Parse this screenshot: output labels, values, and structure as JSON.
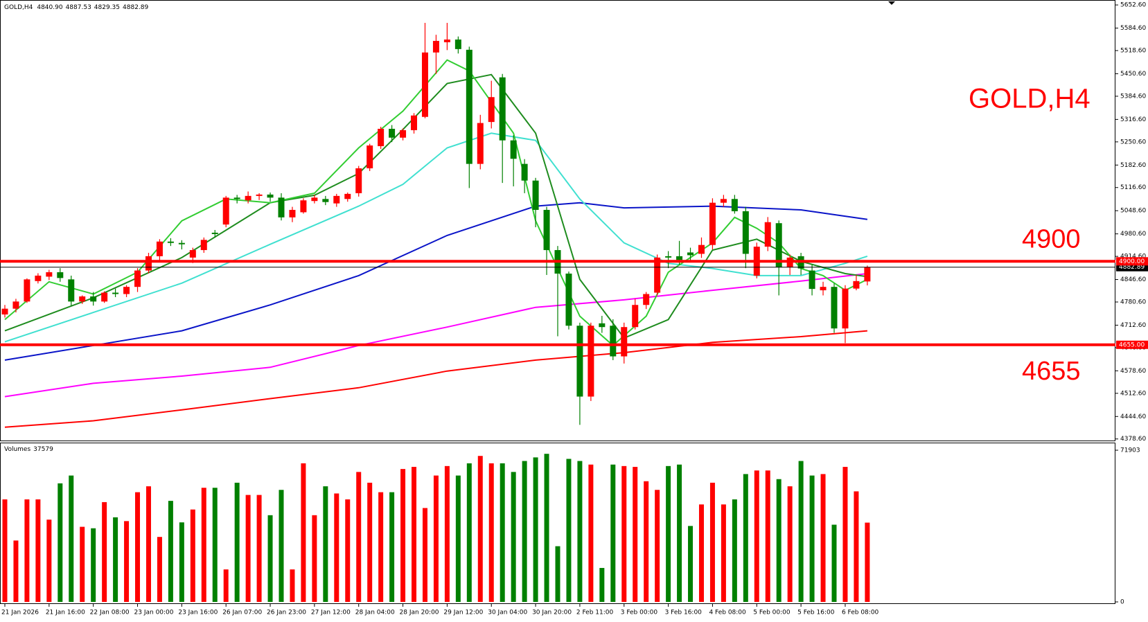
{
  "chart_data": {
    "type": "candlestick",
    "title": "GOLD,H4",
    "header_labels": [
      "4840.90",
      "4887.53",
      "4829.35",
      "4882.89"
    ],
    "categories": [
      "21 Jan 2026",
      null,
      null,
      null,
      "21 Jan 16:00",
      null,
      null,
      null,
      "22 Jan 08:00",
      null,
      null,
      null,
      "23 Jan 00:00",
      null,
      null,
      null,
      "23 Jan 16:00",
      null,
      null,
      null,
      "26 Jan 07:00",
      null,
      null,
      null,
      "26 Jan 23:00",
      null,
      null,
      null,
      "27 Jan 12:00",
      null,
      null,
      null,
      "28 Jan 04:00",
      null,
      null,
      null,
      "28 Jan 20:00",
      null,
      null,
      null,
      "29 Jan 12:00",
      null,
      null,
      null,
      "30 Jan 04:00",
      null,
      null,
      null,
      "30 Jan 20:00",
      null,
      null,
      null,
      "2 Feb 11:00",
      null,
      null,
      null,
      "3 Feb 00:00",
      null,
      null,
      null,
      "3 Feb 16:00",
      null,
      null,
      null,
      "4 Feb 08:00",
      null,
      null,
      null,
      "5 Feb 00:00",
      null,
      null,
      null,
      "5 Feb 16:00",
      null,
      null,
      null,
      "6 Feb 08:00",
      null,
      null
    ],
    "open": [
      4744,
      4761,
      4782,
      4842,
      4855,
      4868,
      4847,
      4782,
      4797,
      4782,
      4808,
      4804,
      4825,
      4873,
      4915,
      4958,
      4954,
      4911,
      4933,
      4984,
      5008,
      5087,
      5079,
      5092,
      5096,
      5087,
      5029,
      5044,
      5077,
      5083,
      5070,
      5083,
      5100,
      5173,
      5238,
      5289,
      5263,
      5285,
      5324,
      5513,
      5543,
      5551,
      5521,
      5186,
      5309,
      5440,
      5255,
      5186,
      5137,
      5051,
      4933,
      4864,
      4711,
      4503,
      4718,
      4711,
      4621,
      4707,
      4772,
      4808,
      4915,
      4915,
      4926,
      4922,
      4948,
      5072,
      5083,
      5047,
      4858,
      4943,
      5012,
      4883,
      4915,
      4873,
      4815,
      4825,
      4703,
      4820,
      4840.9
    ],
    "high": [
      4772,
      4790,
      4850,
      4865,
      4875,
      4880,
      4858,
      4800,
      4810,
      4812,
      4820,
      4830,
      4880,
      4925,
      4965,
      4968,
      4962,
      4940,
      4970,
      4992,
      5092,
      5095,
      5105,
      5100,
      5102,
      5100,
      5060,
      5085,
      5095,
      5092,
      5098,
      5102,
      5180,
      5245,
      5295,
      5300,
      5290,
      5335,
      5600,
      5565,
      5600,
      5560,
      5530,
      5330,
      5430,
      5450,
      5270,
      5200,
      5145,
      5060,
      4945,
      4870,
      4720,
      4720,
      4740,
      4730,
      4720,
      4790,
      4810,
      4920,
      4930,
      4960,
      4940,
      4970,
      5085,
      5095,
      5095,
      5060,
      4955,
      5030,
      5020,
      4920,
      4925,
      4890,
      4840,
      4835,
      4830,
      4860,
      4887.53
    ],
    "low": [
      4735,
      4750,
      4778,
      4835,
      4845,
      4840,
      4770,
      4775,
      4770,
      4778,
      4795,
      4795,
      4810,
      4865,
      4900,
      4945,
      4935,
      4895,
      4925,
      4970,
      5000,
      5070,
      5070,
      5080,
      5075,
      5020,
      5015,
      5040,
      5070,
      5065,
      5060,
      5075,
      5090,
      5165,
      5230,
      5250,
      5255,
      5275,
      5320,
      5450,
      5520,
      5510,
      5115,
      5170,
      5290,
      5130,
      5120,
      5100,
      5000,
      4860,
      4680,
      4700,
      4420,
      4490,
      4690,
      4610,
      4600,
      4700,
      4760,
      4800,
      4880,
      4890,
      4900,
      4910,
      4935,
      5060,
      5040,
      4880,
      4850,
      4930,
      4800,
      4860,
      4860,
      4800,
      4800,
      4690,
      4660,
      4815,
      4829.35
    ],
    "close": [
      4761,
      4782,
      4847,
      4858,
      4868,
      4851,
      4782,
      4797,
      4782,
      4808,
      4804,
      4825,
      4873,
      4915,
      4958,
      4954,
      4950,
      4933,
      4963,
      4980,
      5087,
      5083,
      5092,
      5096,
      5087,
      5029,
      5051,
      5079,
      5087,
      5074,
      5092,
      5098,
      5173,
      5240,
      5289,
      5263,
      5285,
      5328,
      5513,
      5547,
      5551,
      5523,
      5186,
      5306,
      5382,
      5255,
      5201,
      5137,
      5051,
      4933,
      4864,
      4711,
      4503,
      4711,
      4707,
      4621,
      4707,
      4772,
      4804,
      4911,
      4911,
      4904,
      4918,
      4948,
      5072,
      5083,
      5047,
      4922,
      4943,
      5015,
      4883,
      4911,
      4879,
      4819,
      4825,
      4703,
      4820,
      4842,
      4882.89
    ],
    "up_color": "#ff0000",
    "down_color": "#008000",
    "ylim": [
      4374,
      5663
    ],
    "yticks": [
      {
        "value": 5652.6,
        "label": "5652.60"
      },
      {
        "value": 5584.6,
        "label": "5584.60"
      },
      {
        "value": 5518.6,
        "label": "5518.60"
      },
      {
        "value": 5450.6,
        "label": "5450.60"
      },
      {
        "value": 5384.6,
        "label": "5384.60"
      },
      {
        "value": 5316.6,
        "label": "5316.60"
      },
      {
        "value": 5250.6,
        "label": "5250.60"
      },
      {
        "value": 5182.6,
        "label": "5182.60"
      },
      {
        "value": 5116.6,
        "label": "5116.60"
      },
      {
        "value": 5048.6,
        "label": "5048.60"
      },
      {
        "value": 4980.6,
        "label": "4980.60"
      },
      {
        "value": 4914.6,
        "label": "4914.60"
      },
      {
        "value": 4846.6,
        "label": "4846.60"
      },
      {
        "value": 4780.6,
        "label": "4780.60"
      },
      {
        "value": 4712.6,
        "label": "4712.60"
      },
      {
        "value": 4646.6,
        "label": "4646.60"
      },
      {
        "value": 4578.6,
        "label": "4578.60"
      },
      {
        "value": 4512.6,
        "label": "4512.60"
      },
      {
        "value": 4444.6,
        "label": "4444.60"
      },
      {
        "value": 4378.6,
        "label": "4378.60"
      }
    ],
    "moving_averages": [
      {
        "color": "#ff0000",
        "x": [
          0,
          8,
          16,
          24,
          32,
          40,
          48,
          56,
          64,
          72,
          78
        ],
        "values": [
          4413,
          4432,
          4464,
          4497,
          4529,
          4578,
          4610,
          4632,
          4662,
          4679,
          4696
        ]
      },
      {
        "color": "#ff00ff",
        "x": [
          0,
          8,
          16,
          24,
          32,
          40,
          48,
          56,
          64,
          72,
          78
        ],
        "values": [
          4503,
          4542,
          4563,
          4589,
          4653,
          4707,
          4765,
          4787,
          4815,
          4842,
          4864
        ]
      },
      {
        "color": "#0a14c8",
        "x": [
          0,
          8,
          16,
          24,
          32,
          40,
          48,
          52,
          56,
          64,
          72,
          78
        ],
        "values": [
          4610,
          4653,
          4696,
          4772,
          4858,
          4976,
          5062,
          5072,
          5057,
          5062,
          5051,
          5023
        ]
      },
      {
        "color": "#40e0d0",
        "x": [
          0,
          8,
          16,
          24,
          32,
          36,
          40,
          44,
          48,
          52,
          56,
          60,
          64,
          68,
          72,
          76,
          78
        ],
        "values": [
          4664,
          4750,
          4836,
          4950,
          5062,
          5126,
          5233,
          5276,
          5255,
          5083,
          4954,
          4894,
          4879,
          4858,
          4858,
          4894,
          4915
        ]
      },
      {
        "color": "#1e8c1e",
        "x": [
          0,
          8,
          16,
          24,
          28,
          32,
          36,
          40,
          44,
          48,
          52,
          56,
          60,
          64,
          68,
          72,
          76,
          78
        ],
        "values": [
          4696,
          4793,
          4911,
          5072,
          5094,
          5158,
          5287,
          5422,
          5448,
          5276,
          4847,
          4675,
          4729,
          4933,
          4965,
          4900,
          4864,
          4855
        ]
      },
      {
        "color": "#32cd32",
        "x": [
          0,
          4,
          8,
          12,
          16,
          20,
          24,
          28,
          32,
          36,
          40,
          42,
          46,
          48,
          52,
          55,
          58,
          60,
          64,
          66,
          68,
          70,
          72,
          74,
          76,
          78
        ],
        "values": [
          4729,
          4840,
          4804,
          4868,
          5019,
          5083,
          5072,
          5100,
          5233,
          5341,
          5491,
          5459,
          5276,
          5019,
          4739,
          4653,
          4739,
          4868,
          4954,
          5029,
          4997,
          4954,
          4879,
          4858,
          4815,
          4847
        ]
      }
    ],
    "hlines": [
      {
        "value": 4900,
        "label": "4900.00",
        "color": "#ff0000"
      },
      {
        "value": 4655,
        "label": "4655.00",
        "color": "#ff0000"
      }
    ],
    "volume": {
      "label": "Volumes",
      "ylim": [
        0,
        71903
      ],
      "yticks": [
        0,
        71903
      ],
      "values": [
        48600,
        29100,
        48600,
        48600,
        39000,
        56200,
        59900,
        35600,
        34900,
        47300,
        40100,
        38300,
        52000,
        54800,
        30800,
        47900,
        37700,
        43800,
        54100,
        54100,
        15400,
        56500,
        50700,
        50700,
        41100,
        53100,
        15400,
        65700,
        41100,
        54800,
        51400,
        48600,
        61600,
        56500,
        52000,
        52000,
        63000,
        64000,
        44500,
        59900,
        64400,
        59900,
        65700,
        69200,
        65700,
        65700,
        61600,
        66800,
        68500,
        70200,
        26400,
        67800,
        66800,
        65100,
        16100,
        65100,
        64400,
        64000,
        57200,
        53100,
        64400,
        65100,
        36000,
        46200,
        56500,
        46200,
        48600,
        60600,
        62300,
        62300,
        58200,
        54800,
        66800,
        59900,
        60600,
        36600,
        64000,
        52400,
        37579
      ]
    }
  }
}
